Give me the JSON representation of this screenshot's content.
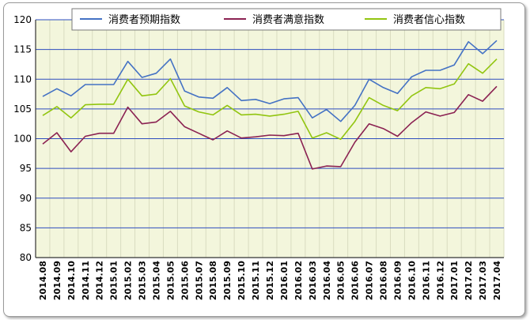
{
  "chart_data": {
    "type": "line",
    "title": "",
    "xlabel": "",
    "ylabel": "",
    "ylim": [
      80,
      120
    ],
    "yticks": [
      80,
      85,
      90,
      95,
      100,
      105,
      110,
      115,
      120
    ],
    "grid": "horizontal",
    "legend_position": "top",
    "categories": [
      "2014.08",
      "2014.09",
      "2014.10",
      "2014.11",
      "2014.12",
      "2015.01",
      "2015.02",
      "2015.03",
      "2015.04",
      "2015.05",
      "2015.06",
      "2015.07",
      "2015.08",
      "2015.09",
      "2015.10",
      "2015.11",
      "2015.12",
      "2016.01",
      "2016.02",
      "2016.03",
      "2016.04",
      "2016.05",
      "2016.06",
      "2016.07",
      "2016.08",
      "2016.09",
      "2016.10",
      "2016.11",
      "2016.12",
      "2017.01",
      "2017.02",
      "2017.03",
      "2017.04"
    ],
    "series": [
      {
        "name": "消费者预期指数",
        "color": "#4472c4",
        "values": [
          107.1,
          108.4,
          107.2,
          109.1,
          109.1,
          109.1,
          113.0,
          110.3,
          111.0,
          113.4,
          108.0,
          107.0,
          106.8,
          108.6,
          106.4,
          106.6,
          105.9,
          106.7,
          106.9,
          103.5,
          104.9,
          102.9,
          105.6,
          110.0,
          108.6,
          107.6,
          110.4,
          111.5,
          111.5,
          112.4,
          116.3,
          114.3,
          116.5
        ]
      },
      {
        "name": "消费者满意指数",
        "color": "#8b2252",
        "values": [
          99.1,
          101.0,
          97.8,
          100.4,
          100.9,
          100.9,
          105.3,
          102.5,
          102.8,
          104.6,
          102.0,
          100.9,
          99.8,
          101.3,
          100.1,
          100.3,
          100.6,
          100.5,
          100.9,
          94.9,
          95.4,
          95.3,
          99.4,
          102.5,
          101.7,
          100.4,
          102.7,
          104.5,
          103.8,
          104.4,
          107.4,
          106.3,
          108.8
        ]
      },
      {
        "name": "消费者信心指数",
        "color": "#92c510",
        "values": [
          103.9,
          105.4,
          103.5,
          105.7,
          105.8,
          105.8,
          110.0,
          107.2,
          107.5,
          110.1,
          105.5,
          104.5,
          104.0,
          105.6,
          104.0,
          104.1,
          103.8,
          104.1,
          104.6,
          100.1,
          101.0,
          99.9,
          102.9,
          106.9,
          105.6,
          104.7,
          107.2,
          108.6,
          108.4,
          109.2,
          112.6,
          111.0,
          113.4
        ]
      }
    ]
  }
}
